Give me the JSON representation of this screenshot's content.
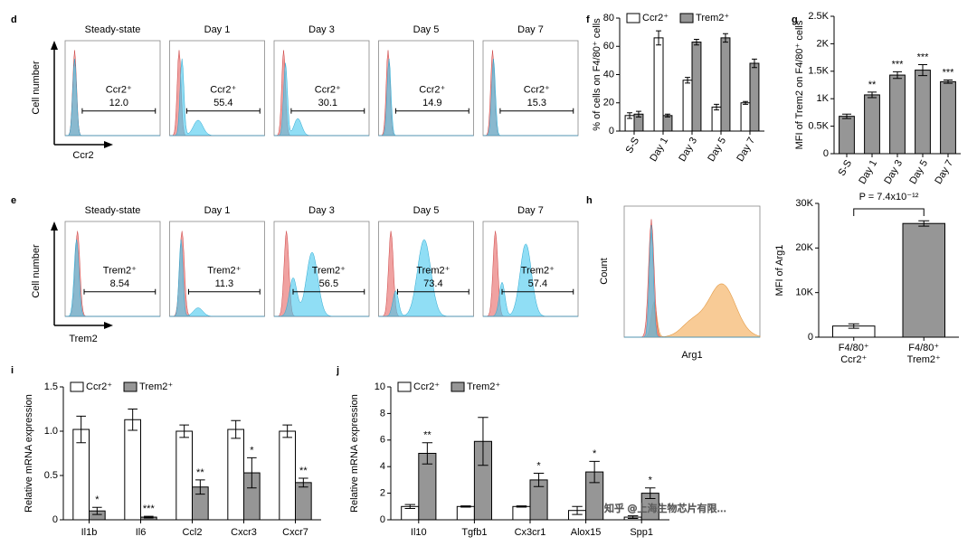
{
  "chart_data": [
    {
      "type": "flow",
      "panel": "d",
      "titles": [
        "Steady-state",
        "Day 1",
        "Day 3",
        "Day 5",
        "Day 7"
      ],
      "gate_label": "Ccr2⁺",
      "gate_values": [
        "12.0",
        "55.4",
        "30.1",
        "14.9",
        "15.3"
      ],
      "y_label": "Cell number",
      "x_label": "Ccr2"
    },
    {
      "type": "flow",
      "panel": "e",
      "titles": [
        "Steady-state",
        "Day 1",
        "Day 3",
        "Day 5",
        "Day 7"
      ],
      "gate_label": "Trem2⁺",
      "gate_values": [
        "8.54",
        "11.3",
        "56.5",
        "73.4",
        "57.4"
      ],
      "y_label": "Cell number",
      "x_label": "Trem2"
    },
    {
      "type": "bar",
      "panel": "f",
      "categories": [
        "S-S",
        "Day 1",
        "Day 3",
        "Day 5",
        "Day 7"
      ],
      "series": [
        {
          "name": "Ccr2⁺",
          "color": "#ffffff",
          "values": [
            11,
            66,
            36,
            17,
            20
          ],
          "errors": [
            2,
            5,
            2,
            2,
            1
          ]
        },
        {
          "name": "Trem2⁺",
          "color": "#969696",
          "values": [
            12,
            11,
            63,
            66,
            48
          ],
          "errors": [
            2,
            1,
            2,
            3,
            3
          ]
        }
      ],
      "ylim": [
        0,
        80
      ],
      "yticks": [
        0,
        20,
        40,
        60,
        80
      ],
      "y_label": "% of cells on F4/80⁺ cells",
      "legend": "top"
    },
    {
      "type": "bar",
      "panel": "g",
      "categories": [
        "S-S",
        "Day 1",
        "Day 3",
        "Day 5",
        "Day 7"
      ],
      "values": [
        680,
        1070,
        1430,
        1520,
        1310
      ],
      "errors": [
        40,
        50,
        60,
        100,
        30
      ],
      "color": "#969696",
      "annotations": [
        null,
        "**",
        "***",
        "***",
        "***"
      ],
      "ylim": [
        0,
        2500
      ],
      "yticks": [
        0,
        {
          "value": 500,
          "label": "0.5K"
        },
        {
          "value": 1000,
          "label": "1K"
        },
        {
          "value": 1500,
          "label": "1.5K"
        },
        {
          "value": 2000,
          "label": "2K"
        },
        {
          "value": 2500,
          "label": "2.5K"
        }
      ],
      "y_label": "MFI of Trem2 on F4/80⁺ cells"
    },
    {
      "type": "flow",
      "panel": "h",
      "y_label": "Count",
      "x_label": "Arg1"
    },
    {
      "type": "bar",
      "categories": [
        [
          "F4/80⁺",
          "Ccr2⁺"
        ],
        [
          "F4/80⁺",
          "Trem2⁺"
        ]
      ],
      "values": [
        2500,
        25500
      ],
      "errors": [
        500,
        600
      ],
      "colors": [
        "#ffffff",
        "#969696"
      ],
      "ylim": [
        0,
        30000
      ],
      "yticks": [
        0,
        {
          "value": 10000,
          "label": "10K"
        },
        {
          "value": 20000,
          "label": "20K"
        },
        {
          "value": 30000,
          "label": "30K"
        }
      ],
      "y_label": "MFI of Arg1",
      "p_label": "P = 7.4x10⁻¹²"
    },
    {
      "type": "bar",
      "panel": "i",
      "categories": [
        "Il1b",
        "Il6",
        "Ccl2",
        "Cxcr3",
        "Cxcr7"
      ],
      "series": [
        {
          "name": "Ccr2⁺",
          "color": "#ffffff",
          "values": [
            1.02,
            1.13,
            1.0,
            1.02,
            1.0
          ],
          "errors": [
            0.15,
            0.12,
            0.07,
            0.1,
            0.07
          ]
        },
        {
          "name": "Trem2⁺",
          "color": "#969696",
          "values": [
            0.1,
            0.03,
            0.37,
            0.53,
            0.42
          ],
          "errors": [
            0.04,
            0.01,
            0.08,
            0.17,
            0.05
          ]
        }
      ],
      "annotations": [
        "*",
        "***",
        "**",
        "*",
        "**"
      ],
      "ylim": [
        0,
        1.5
      ],
      "yticks": [
        0,
        0.5,
        {
          "value": 1,
          "label": "1.0"
        },
        1.5
      ],
      "y_label": "Relative mRNA expression",
      "legend": "top"
    },
    {
      "type": "bar",
      "panel": "j",
      "categories": [
        "Il10",
        "Tgfb1",
        "Cx3cr1",
        "Alox15",
        "Spp1"
      ],
      "series": [
        {
          "name": "Ccr2⁺",
          "color": "#ffffff",
          "values": [
            1.0,
            1.0,
            1.0,
            0.7,
            0.2
          ],
          "errors": [
            0.15,
            0.05,
            0.05,
            0.3,
            0.1
          ]
        },
        {
          "name": "Trem2⁺",
          "color": "#969696",
          "values": [
            5.0,
            5.9,
            3.0,
            3.6,
            2.0
          ],
          "errors": [
            0.8,
            1.8,
            0.5,
            0.8,
            0.4
          ]
        }
      ],
      "annotations": [
        "**",
        null,
        "*",
        "*",
        "*"
      ],
      "ylim": [
        0,
        10
      ],
      "yticks": [
        0,
        2,
        4,
        6,
        8,
        10
      ],
      "y_label": "Relative mRNA expression",
      "legend": "top"
    }
  ],
  "watermark": "知乎 @上海生物芯片有限..."
}
